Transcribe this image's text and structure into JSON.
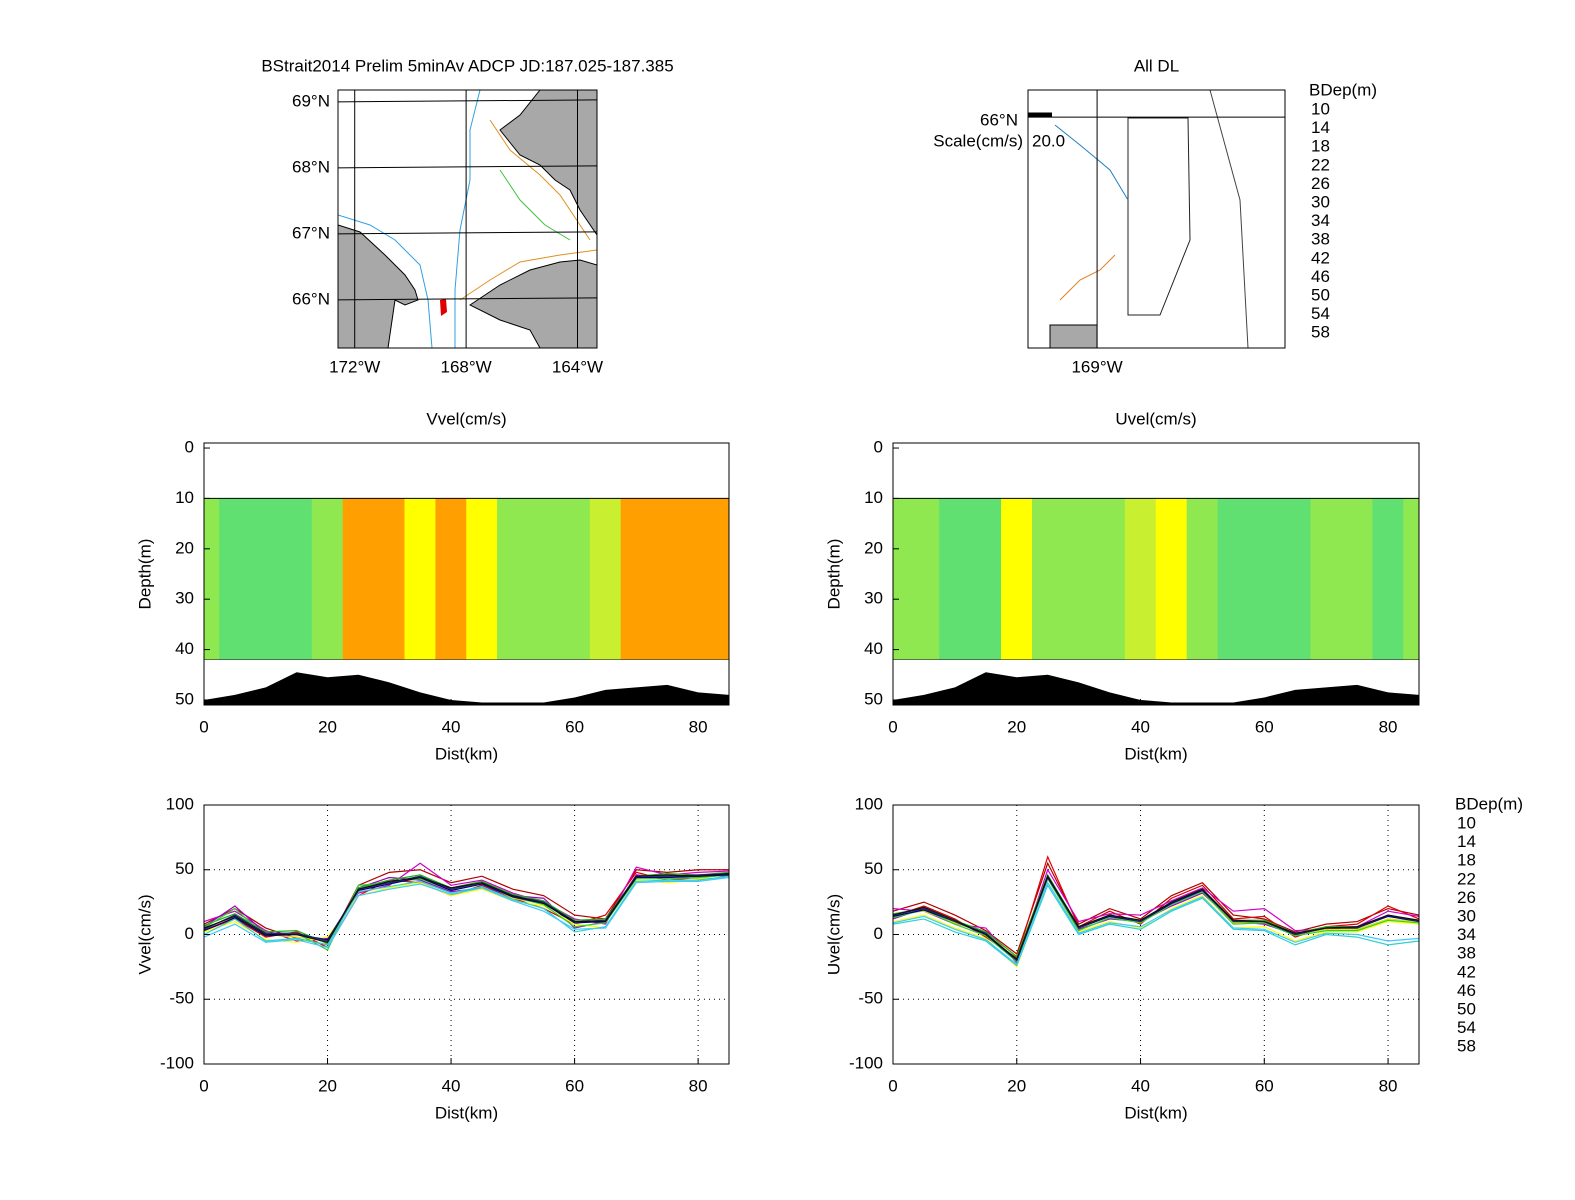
{
  "chart_data": [
    {
      "type": "map",
      "title": "BStrait2014 Prelim 5minAv ADCP JD:187.025-187.385",
      "xlim": [
        -172.6,
        -163.3
      ],
      "ylim": [
        65.27,
        69.18
      ],
      "xticks": [
        {
          "value": -172,
          "label": "172°W"
        },
        {
          "value": -168,
          "label": "168°W"
        },
        {
          "value": -164,
          "label": "164°W"
        }
      ],
      "yticks": [
        {
          "value": 69,
          "label": "69°N"
        },
        {
          "value": 68,
          "label": "68°N"
        },
        {
          "value": 67,
          "label": "67°N"
        },
        {
          "value": 66,
          "label": "66°N"
        }
      ]
    },
    {
      "type": "vector-map",
      "title": "All DL",
      "xlim": [
        -169.25,
        -168.32
      ],
      "ylim": [
        65.55,
        66.053
      ],
      "xticks": [
        {
          "value": -169,
          "label": "169°W"
        }
      ],
      "yticks": [
        {
          "value": 66,
          "label": "66°N"
        }
      ],
      "scale_label": "Scale(cm/s)",
      "scale": {
        "value": 20,
        "label": "20.0"
      },
      "legend_title": "BDep(m)",
      "series": [
        {
          "name": "10",
          "color": "#b00000"
        },
        {
          "name": "14",
          "color": "#e00000"
        },
        {
          "name": "18",
          "color": "#d000d0"
        },
        {
          "name": "22",
          "color": "#a000c0"
        },
        {
          "name": "26",
          "color": "#ffff00"
        },
        {
          "name": "30",
          "color": "#e0e000"
        },
        {
          "name": "34",
          "color": "#20b020"
        },
        {
          "name": "38",
          "color": "#30d030"
        },
        {
          "name": "42",
          "color": "#30d0d0"
        },
        {
          "name": "46",
          "color": "#40c8ff"
        },
        {
          "name": "50",
          "color": "#000080"
        },
        {
          "name": "54",
          "color": "#202070"
        },
        {
          "name": "58",
          "color": "#101010"
        }
      ]
    },
    {
      "type": "contour",
      "title": "Vvel(cm/s)",
      "xlabel": "Dist(km)",
      "ylabel": "Depth(m)",
      "xlim": [
        0,
        85
      ],
      "ylim": [
        51,
        -1
      ],
      "xticks": [
        0,
        20,
        40,
        60,
        80
      ],
      "yticks": [
        0,
        10,
        20,
        30,
        40,
        50
      ],
      "data_depths": [
        10,
        42
      ],
      "x": [
        0,
        5,
        10,
        15,
        20,
        25,
        30,
        35,
        40,
        45,
        50,
        55,
        60,
        65,
        70,
        75,
        80,
        85
      ],
      "values": [
        10,
        5,
        0,
        5,
        15,
        40,
        40,
        35,
        40,
        30,
        10,
        10,
        15,
        20,
        40,
        40,
        40,
        40
      ],
      "bottom": [
        50,
        49,
        47.5,
        44.5,
        45.5,
        45,
        46.5,
        48.5,
        50,
        50.5,
        50.5,
        50.5,
        49.5,
        48,
        47.5,
        47,
        48.5,
        49
      ],
      "levels": [
        -20,
        -10,
        0,
        10,
        20,
        30,
        40,
        50
      ],
      "level_colors": [
        "#00c0c0",
        "#30e0b0",
        "#60e070",
        "#90e850",
        "#c8f030",
        "#ffff00",
        "#ffa000",
        "#ff2000"
      ]
    },
    {
      "type": "contour",
      "title": "Uvel(cm/s)",
      "xlabel": "Dist(km)",
      "ylabel": "Depth(m)",
      "xlim": [
        0,
        85
      ],
      "ylim": [
        51,
        -1
      ],
      "xticks": [
        0,
        20,
        40,
        60,
        80
      ],
      "yticks": [
        0,
        10,
        20,
        30,
        40,
        50
      ],
      "data_depths": [
        10,
        42
      ],
      "x": [
        0,
        5,
        10,
        15,
        20,
        25,
        30,
        35,
        40,
        45,
        50,
        55,
        60,
        65,
        70,
        75,
        80,
        85
      ],
      "values": [
        15,
        10,
        0,
        5,
        30,
        10,
        15,
        15,
        20,
        30,
        15,
        5,
        0,
        5,
        10,
        10,
        5,
        10
      ],
      "bottom": [
        50,
        49,
        47.5,
        44.5,
        45.5,
        45,
        46.5,
        48.5,
        50,
        50.5,
        50.5,
        50.5,
        49.5,
        48,
        47.5,
        47,
        48.5,
        49
      ],
      "levels": [
        -20,
        -10,
        0,
        10,
        20,
        30,
        40,
        50
      ],
      "level_colors": [
        "#00c0c0",
        "#30e0b0",
        "#60e070",
        "#90e850",
        "#c8f030",
        "#ffff00",
        "#ffa000",
        "#ff2000"
      ]
    },
    {
      "type": "line",
      "xlabel": "Dist(km)",
      "ylabel": "Vvel(cm/s)",
      "grid": true,
      "xlim": [
        0,
        85
      ],
      "ylim": [
        -100,
        100
      ],
      "xticks": [
        0,
        20,
        40,
        60,
        80
      ],
      "yticks": [
        -100,
        -50,
        0,
        50,
        100
      ],
      "x": [
        0,
        5,
        10,
        15,
        20,
        25,
        30,
        35,
        40,
        45,
        50,
        55,
        60,
        65,
        70,
        75,
        80,
        85
      ],
      "series": [
        {
          "color": "#b00000",
          "values": [
            8,
            20,
            5,
            -3,
            -8,
            38,
            48,
            50,
            40,
            45,
            35,
            30,
            15,
            12,
            50,
            48,
            50,
            50
          ]
        },
        {
          "color": "#e00000",
          "values": [
            3,
            12,
            -2,
            2,
            -10,
            30,
            42,
            40,
            30,
            38,
            28,
            20,
            8,
            15,
            48,
            42,
            44,
            46
          ]
        },
        {
          "color": "#d000d0",
          "values": [
            10,
            18,
            3,
            -5,
            -3,
            32,
            38,
            55,
            38,
            42,
            32,
            25,
            12,
            8,
            52,
            46,
            48,
            49
          ]
        },
        {
          "color": "#a000c0",
          "values": [
            6,
            22,
            1,
            0,
            -6,
            36,
            44,
            42,
            33,
            36,
            30,
            28,
            5,
            10,
            46,
            44,
            46,
            45
          ]
        },
        {
          "color": "#ffff00",
          "values": [
            2,
            10,
            -4,
            -6,
            -2,
            30,
            36,
            40,
            30,
            35,
            26,
            22,
            8,
            5,
            42,
            40,
            42,
            48
          ]
        },
        {
          "color": "#e0e000",
          "values": [
            4,
            14,
            0,
            -2,
            -5,
            34,
            40,
            44,
            35,
            40,
            28,
            24,
            10,
            10,
            44,
            45,
            43,
            47
          ]
        },
        {
          "color": "#20b020",
          "values": [
            7,
            16,
            2,
            3,
            -7,
            36,
            42,
            46,
            36,
            41,
            31,
            26,
            11,
            12,
            45,
            47,
            46,
            48
          ]
        },
        {
          "color": "#30d030",
          "values": [
            5,
            20,
            -1,
            1,
            -12,
            38,
            40,
            43,
            34,
            39,
            29,
            23,
            6,
            9,
            43,
            43,
            44,
            46
          ]
        },
        {
          "color": "#30d0d0",
          "values": [
            0,
            12,
            -5,
            -3,
            -8,
            33,
            37,
            41,
            32,
            37,
            27,
            20,
            2,
            6,
            41,
            42,
            42,
            45
          ]
        },
        {
          "color": "#40c8ff",
          "values": [
            -2,
            8,
            -6,
            -4,
            -10,
            30,
            35,
            39,
            31,
            36,
            26,
            18,
            4,
            5,
            40,
            41,
            41,
            44
          ]
        },
        {
          "color": "#000080",
          "values": [
            3,
            13,
            -1,
            0,
            -4,
            34,
            39,
            44,
            34,
            39,
            29,
            24,
            9,
            10,
            44,
            44,
            45,
            46
          ]
        },
        {
          "color": "#202070",
          "values": [
            4,
            15,
            1,
            1,
            -5,
            35,
            40,
            45,
            35,
            40,
            30,
            25,
            10,
            11,
            45,
            45,
            46,
            47
          ]
        },
        {
          "color": "#101010",
          "values": [
            5,
            14,
            0,
            0,
            -6,
            35,
            41,
            44,
            36,
            40,
            30,
            24,
            10,
            10,
            45,
            46,
            45,
            47
          ]
        }
      ]
    },
    {
      "type": "line",
      "xlabel": "Dist(km)",
      "ylabel": "Uvel(cm/s)",
      "grid": true,
      "legend_title": "BDep(m)",
      "xlim": [
        0,
        85
      ],
      "ylim": [
        -100,
        100
      ],
      "xticks": [
        0,
        20,
        40,
        60,
        80
      ],
      "yticks": [
        -100,
        -50,
        0,
        50,
        100
      ],
      "x": [
        0,
        5,
        10,
        15,
        20,
        25,
        30,
        35,
        40,
        45,
        50,
        55,
        60,
        65,
        70,
        75,
        80,
        85
      ],
      "series": [
        {
          "name": "10",
          "color": "#b00000",
          "values": [
            18,
            25,
            15,
            3,
            -15,
            55,
            8,
            20,
            12,
            30,
            40,
            15,
            12,
            2,
            8,
            10,
            20,
            15
          ]
        },
        {
          "name": "14",
          "color": "#e00000",
          "values": [
            14,
            22,
            12,
            -2,
            -18,
            60,
            6,
            18,
            8,
            28,
            38,
            12,
            14,
            -2,
            6,
            8,
            22,
            12
          ]
        },
        {
          "name": "18",
          "color": "#d000d0",
          "values": [
            20,
            18,
            8,
            5,
            -22,
            50,
            10,
            16,
            15,
            26,
            36,
            18,
            20,
            3,
            4,
            6,
            18,
            14
          ]
        },
        {
          "name": "22",
          "color": "#a000c0",
          "values": [
            12,
            20,
            10,
            0,
            -20,
            45,
            4,
            12,
            10,
            22,
            32,
            10,
            8,
            0,
            5,
            5,
            15,
            10
          ]
        },
        {
          "name": "26",
          "color": "#ffff00",
          "values": [
            10,
            15,
            5,
            -3,
            -25,
            40,
            2,
            10,
            5,
            20,
            30,
            5,
            6,
            -5,
            2,
            2,
            10,
            8
          ]
        },
        {
          "name": "30",
          "color": "#e0e000",
          "values": [
            15,
            18,
            9,
            1,
            -19,
            44,
            5,
            14,
            9,
            24,
            34,
            9,
            10,
            0,
            4,
            4,
            12,
            10
          ]
        },
        {
          "name": "34",
          "color": "#20b020",
          "values": [
            16,
            20,
            11,
            2,
            -17,
            46,
            6,
            15,
            11,
            25,
            35,
            11,
            11,
            1,
            6,
            6,
            14,
            11
          ]
        },
        {
          "name": "38",
          "color": "#30d030",
          "values": [
            13,
            19,
            8,
            -1,
            -21,
            43,
            3,
            13,
            9,
            23,
            33,
            8,
            9,
            -1,
            3,
            3,
            11,
            9
          ]
        },
        {
          "name": "42",
          "color": "#30d0d0",
          "values": [
            8,
            12,
            2,
            -5,
            -24,
            38,
            0,
            8,
            4,
            18,
            28,
            4,
            3,
            -8,
            0,
            -2,
            -8,
            -5
          ]
        },
        {
          "name": "46",
          "color": "#40c8ff",
          "values": [
            9,
            14,
            4,
            -4,
            -23,
            40,
            1,
            9,
            6,
            19,
            29,
            5,
            4,
            -6,
            1,
            0,
            -5,
            -3
          ]
        },
        {
          "name": "50",
          "color": "#000080",
          "values": [
            14,
            19,
            10,
            0,
            -20,
            44,
            5,
            14,
            10,
            24,
            34,
            10,
            10,
            0,
            5,
            5,
            14,
            10
          ]
        },
        {
          "name": "54",
          "color": "#202070",
          "values": [
            15,
            20,
            10,
            1,
            -20,
            45,
            5,
            15,
            10,
            25,
            35,
            10,
            10,
            0,
            5,
            5,
            15,
            10
          ]
        },
        {
          "name": "58",
          "color": "#101010",
          "values": [
            15,
            21,
            11,
            0,
            -19,
            45,
            6,
            15,
            11,
            25,
            35,
            11,
            10,
            1,
            5,
            6,
            15,
            11
          ]
        }
      ]
    }
  ]
}
